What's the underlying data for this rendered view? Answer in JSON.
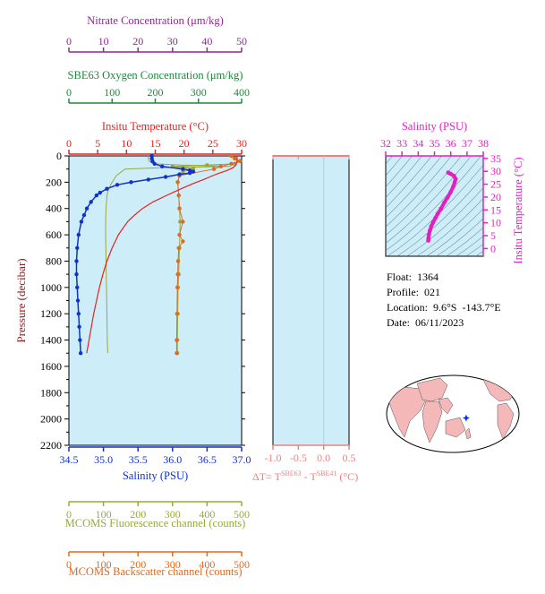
{
  "float_info": {
    "float_label": "Float:  1364",
    "profile_label": "Profile:  021",
    "location_label": "Location:  9.6°S  -143.7°E",
    "date_label": "Date:  06/11/2023"
  },
  "colors": {
    "nitrate": "#8b2a8b",
    "oxygen": "#1a8a3a",
    "temperature": "#e8201c",
    "salinity": "#1030d0",
    "fluorescence": "#9aa83a",
    "backscatter": "#e06a1e",
    "delta_t": "#f08080",
    "ts_axis": "#e020c0",
    "plot_bg": "#cdeef8"
  },
  "chart_data": [
    {
      "type": "line",
      "name": "main-profile",
      "ylabel": "Pressure (decibar)",
      "ylim": [
        2200,
        0
      ],
      "y_ticks": [
        "0",
        "200",
        "400",
        "600",
        "800",
        "1000",
        "1200",
        "1400",
        "1600",
        "1800",
        "2000",
        "2200"
      ],
      "axes": {
        "nitrate": {
          "title": "Nitrate Concentration (μm/kg)",
          "range": [
            0,
            50
          ],
          "ticks": [
            "0",
            "10",
            "20",
            "30",
            "40",
            "50"
          ]
        },
        "oxygen": {
          "title": "SBE63 Oxygen Concentration (μm/kg)",
          "range": [
            0,
            400
          ],
          "ticks": [
            "0",
            "100",
            "200",
            "300",
            "400"
          ]
        },
        "temperature": {
          "title": "Insitu Temperature (°C)",
          "range": [
            0,
            30
          ],
          "ticks": [
            "0",
            "5",
            "10",
            "15",
            "20",
            "25",
            "30"
          ]
        },
        "salinity": {
          "title": "Salinity (PSU)",
          "range": [
            34.5,
            37.0
          ],
          "ticks": [
            "34.5",
            "35.0",
            "35.5",
            "36.0",
            "36.5",
            "37.0"
          ]
        },
        "fluorescence": {
          "title": "MCOMS Fluorescence channel (counts)",
          "range": [
            0,
            500
          ],
          "ticks": [
            "0",
            "100",
            "200",
            "300",
            "400",
            "500"
          ]
        },
        "backscatter": {
          "title": "MCOMS Backscatter channel (counts)",
          "range": [
            0,
            500
          ],
          "ticks": [
            "0",
            "100",
            "200",
            "300",
            "400",
            "500"
          ]
        }
      },
      "series": {
        "temperature": {
          "pressure": [
            0,
            40,
            70,
            90,
            110,
            130,
            150,
            180,
            210,
            250,
            300,
            350,
            400,
            450,
            500,
            600,
            700,
            800,
            900,
            1000,
            1100,
            1200,
            1300,
            1400,
            1500
          ],
          "values": [
            29.2,
            29.2,
            29.0,
            28.5,
            27.5,
            26.2,
            25.0,
            23.4,
            21.6,
            19.5,
            17.0,
            14.6,
            12.8,
            11.4,
            10.2,
            8.6,
            7.5,
            6.6,
            5.9,
            5.3,
            4.8,
            4.3,
            3.9,
            3.5,
            3.1
          ]
        },
        "salinity": {
          "pressure": [
            0,
            20,
            40,
            60,
            80,
            100,
            110,
            120,
            130,
            140,
            160,
            180,
            200,
            220,
            250,
            280,
            300,
            350,
            400,
            450,
            500,
            600,
            700,
            800,
            900,
            1000,
            1100,
            1200,
            1300,
            1400,
            1500
          ],
          "values": [
            35.7,
            35.7,
            35.71,
            35.74,
            35.85,
            36.15,
            36.25,
            36.3,
            36.25,
            36.1,
            35.9,
            35.65,
            35.4,
            35.2,
            35.05,
            34.95,
            34.9,
            34.82,
            34.76,
            34.72,
            34.68,
            34.64,
            34.62,
            34.61,
            34.61,
            34.62,
            34.63,
            34.64,
            34.65,
            34.66,
            34.67
          ]
        },
        "oxygen": {
          "pressure": [
            0,
            20,
            40,
            60,
            70,
            80,
            90,
            100,
            150,
            200,
            250,
            300,
            400,
            500,
            600,
            800,
            1000,
            1200,
            1400,
            1500
          ],
          "values": [
            183,
            184,
            186,
            195,
            260,
            375,
            210,
            130,
            110,
            100,
            92,
            88,
            86,
            85,
            85,
            86,
            87,
            88,
            89,
            90
          ]
        },
        "fluorescence": {
          "pressure": [
            0,
            20,
            40,
            60,
            70,
            80,
            90,
            100,
            120,
            150,
            200,
            300,
            400,
            500,
            700,
            900,
            1000,
            1200,
            1400,
            1500
          ],
          "values": [
            470,
            480,
            495,
            480,
            400,
            300,
            330,
            360,
            330,
            320,
            315,
            318,
            320,
            322,
            320,
            318,
            316,
            315,
            314,
            314
          ]
        },
        "backscatter": {
          "pressure": [
            0,
            20,
            40,
            60,
            80,
            100,
            150,
            200,
            300,
            400,
            500,
            600,
            650,
            700,
            800,
            900,
            1000,
            1200,
            1400,
            1500
          ],
          "values": [
            470,
            480,
            495,
            470,
            440,
            420,
            320,
            315,
            318,
            320,
            330,
            320,
            330,
            318,
            316,
            315,
            314,
            313,
            312,
            312
          ]
        }
      }
    },
    {
      "type": "line",
      "name": "delta-t",
      "xlabel": "ΔT= T^SBE63 - T^SBE41 (°C)",
      "xlabel_main": "ΔT= T",
      "xlabel_sup1": "SBE63",
      "xlabel_mid": " - T",
      "xlabel_sup2": "SBE41",
      "xlabel_tail": " (°C)",
      "xlim": [
        -1.0,
        0.5
      ],
      "x_ticks": [
        "-1.0",
        "-0.5",
        "0.0",
        "0.5"
      ],
      "ylim": [
        2200,
        0
      ]
    },
    {
      "type": "scatter",
      "name": "ts-diagram",
      "xlabel": "Salinity (PSU)",
      "ylabel": "Insitu Temperature (°C)",
      "xlim": [
        32,
        38
      ],
      "ylim": [
        -3,
        36
      ],
      "x_ticks": [
        "32",
        "33",
        "34",
        "35",
        "36",
        "37",
        "38"
      ],
      "y_ticks": [
        "0",
        "5",
        "10",
        "15",
        "20",
        "25",
        "30",
        "35"
      ],
      "salinity": [
        34.62,
        34.63,
        34.66,
        34.72,
        34.8,
        34.92,
        35.05,
        35.2,
        35.4,
        35.6,
        35.8,
        36.0,
        36.15,
        36.25,
        36.3,
        36.2,
        36.0,
        35.85
      ],
      "temperature": [
        3.1,
        4.0,
        5.5,
        7.0,
        8.6,
        10.2,
        11.8,
        13.5,
        15.5,
        17.8,
        19.8,
        22.0,
        24.0,
        25.8,
        27.0,
        28.2,
        29.0,
        29.5
      ]
    },
    {
      "type": "scatter",
      "name": "location-map",
      "lon": -143.7,
      "lat": -9.6
    }
  ]
}
